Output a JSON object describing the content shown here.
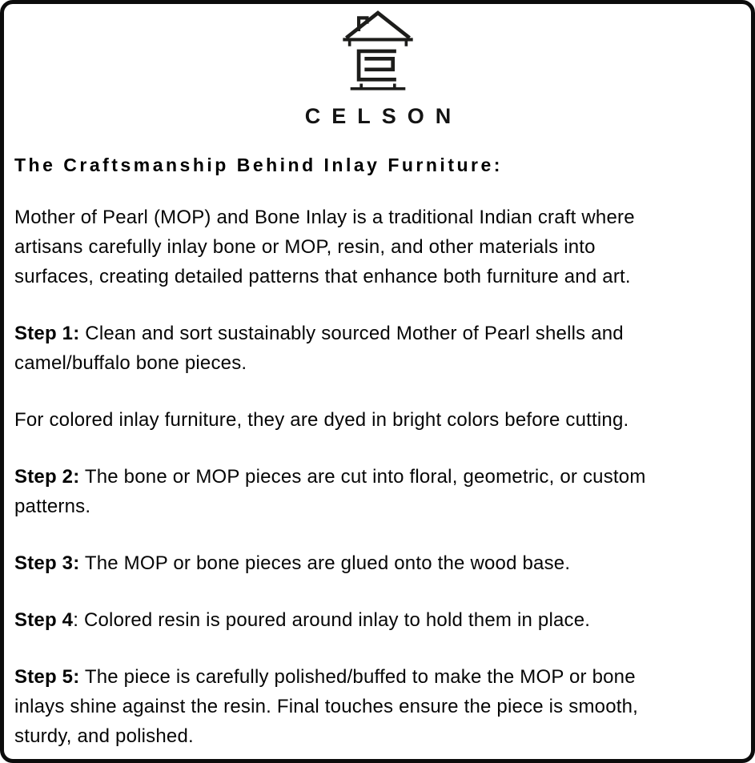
{
  "brand": {
    "name": "CELSON",
    "logo_icon": "house-with-s-monogram"
  },
  "content": {
    "heading": "The Craftsmanship Behind Inlay Furniture:",
    "paragraphs": [
      {
        "lead": "",
        "text": "Mother of Pearl (MOP) and Bone Inlay is a traditional Indian craft where\nartisans carefully inlay bone or MOP, resin, and other materials into\nsurfaces, creating detailed patterns that enhance both furniture and art."
      },
      {
        "lead": "Step 1:",
        "text": " Clean and sort sustainably sourced Mother of Pearl shells and\ncamel/buffalo bone pieces."
      },
      {
        "lead": "",
        "text": "For colored inlay furniture, they are dyed in bright colors before cutting."
      },
      {
        "lead": "Step 2:",
        "text": " The bone or MOP pieces are cut into floral, geometric, or custom\npatterns."
      },
      {
        "lead": "Step 3:",
        "text": " The MOP or bone pieces are glued onto the wood base."
      },
      {
        "lead": "Step 4",
        "text": ": Colored resin is poured around inlay to hold them in place."
      },
      {
        "lead": "Step 5:",
        "text": " The piece is carefully polished/buffed to make the MOP or bone\ninlays shine against the resin. Final touches ensure the piece is smooth,\nsturdy, and polished."
      }
    ]
  },
  "colors": {
    "background": "#ffffff",
    "border": "#0c0c0c",
    "text": "#060606",
    "logo": "#1d1d1b"
  }
}
